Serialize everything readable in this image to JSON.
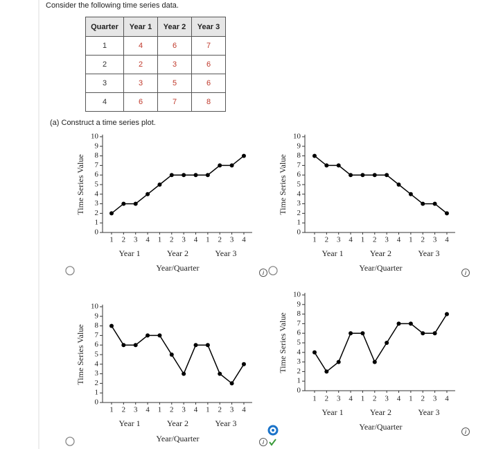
{
  "prompt": "Consider the following time series data.",
  "table": {
    "header": [
      "Quarter",
      "Year 1",
      "Year 2",
      "Year 3"
    ],
    "rows": [
      [
        1,
        4,
        6,
        7
      ],
      [
        2,
        2,
        3,
        6
      ],
      [
        3,
        3,
        5,
        6
      ],
      [
        4,
        6,
        7,
        8
      ]
    ]
  },
  "question": "(a)   Construct a time series plot.",
  "chart_data": [
    {
      "type": "line",
      "categories": [
        "1",
        "2",
        "3",
        "4",
        "1",
        "2",
        "3",
        "4",
        "1",
        "2",
        "3",
        "4"
      ],
      "groups": [
        "Year 1",
        "Year 2",
        "Year 3"
      ],
      "values": [
        2,
        3,
        3,
        4,
        5,
        6,
        6,
        6,
        6,
        7,
        7,
        8
      ],
      "color": "#000000",
      "ylim": [
        0,
        10
      ],
      "yticks": [
        0,
        1,
        2,
        3,
        4,
        5,
        6,
        7,
        8,
        9,
        10
      ],
      "xlabel": "Year/Quarter",
      "ylabel": "Time Series Value"
    },
    {
      "type": "line",
      "categories": [
        "1",
        "2",
        "3",
        "4",
        "1",
        "2",
        "3",
        "4",
        "1",
        "2",
        "3",
        "4"
      ],
      "groups": [
        "Year 1",
        "Year 2",
        "Year 3"
      ],
      "values": [
        8,
        7,
        7,
        6,
        6,
        6,
        6,
        5,
        4,
        3,
        3,
        2
      ],
      "color": "#000000",
      "ylim": [
        0,
        10
      ],
      "yticks": [
        0,
        1,
        2,
        3,
        4,
        5,
        6,
        7,
        8,
        9,
        10
      ],
      "xlabel": "Year/Quarter",
      "ylabel": "Time Series Value"
    },
    {
      "type": "line",
      "categories": [
        "1",
        "2",
        "3",
        "4",
        "1",
        "2",
        "3",
        "4",
        "1",
        "2",
        "3",
        "4"
      ],
      "groups": [
        "Year 1",
        "Year 2",
        "Year 3"
      ],
      "values": [
        8,
        6,
        6,
        7,
        7,
        5,
        3,
        6,
        6,
        3,
        2,
        4
      ],
      "color": "#000000",
      "ylim": [
        0,
        10
      ],
      "yticks": [
        0,
        1,
        2,
        3,
        4,
        5,
        6,
        7,
        8,
        9,
        10
      ],
      "xlabel": "Year/Quarter",
      "ylabel": "Time Series Value"
    },
    {
      "type": "line",
      "categories": [
        "1",
        "2",
        "3",
        "4",
        "1",
        "2",
        "3",
        "4",
        "1",
        "2",
        "3",
        "4"
      ],
      "groups": [
        "Year 1",
        "Year 2",
        "Year 3"
      ],
      "values": [
        4,
        2,
        3,
        6,
        6,
        3,
        5,
        7,
        7,
        6,
        6,
        8
      ],
      "color": "#000000",
      "ylim": [
        0,
        10
      ],
      "yticks": [
        0,
        1,
        2,
        3,
        4,
        5,
        6,
        7,
        8,
        9,
        10
      ],
      "xlabel": "Year/Quarter",
      "ylabel": "Time Series Value"
    }
  ]
}
